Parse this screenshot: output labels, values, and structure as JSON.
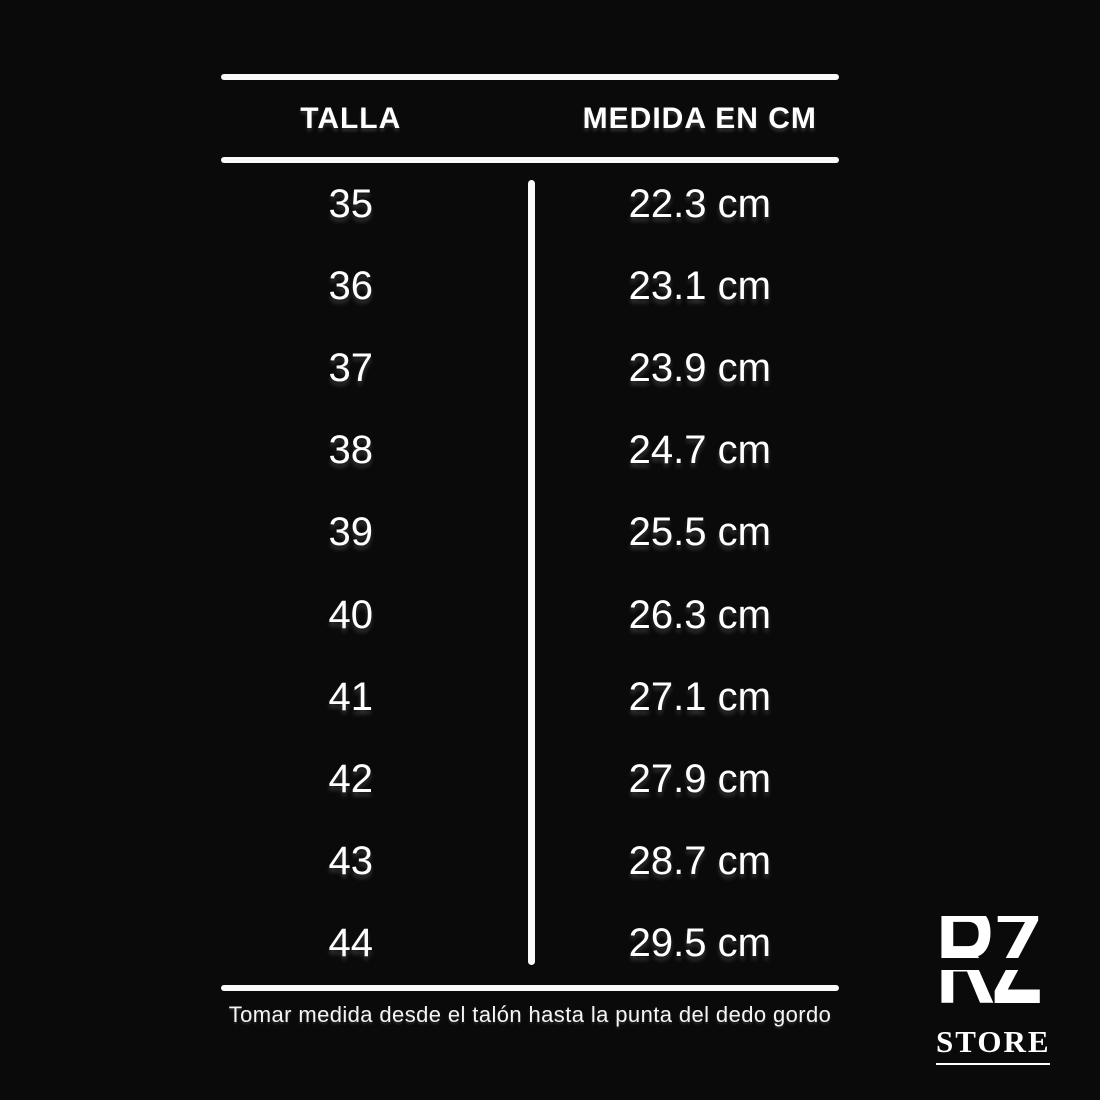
{
  "page": {
    "background_color": "#0a0a0b",
    "text_color": "#ffffff",
    "line_color": "#fafafa"
  },
  "chart_data": {
    "type": "table",
    "columns": [
      "TALLA",
      "MEDIDA EN CM"
    ],
    "rows": [
      [
        "35",
        "22.3 cm"
      ],
      [
        "36",
        "23.1 cm"
      ],
      [
        "37",
        "23.9 cm"
      ],
      [
        "38",
        "24.7 cm"
      ],
      [
        "39",
        "25.5 cm"
      ],
      [
        "40",
        "26.3 cm"
      ],
      [
        "41",
        "27.1 cm"
      ],
      [
        "42",
        "27.9 cm"
      ],
      [
        "43",
        "28.7 cm"
      ],
      [
        "44",
        "29.5 cm"
      ]
    ],
    "sizes": [
      35,
      36,
      37,
      38,
      39,
      40,
      41,
      42,
      43,
      44
    ],
    "measurements_cm": [
      22.3,
      23.1,
      23.9,
      24.7,
      25.5,
      26.3,
      27.1,
      27.9,
      28.7,
      29.5
    ],
    "note": "Tomar medida desde el talón hasta la punta del dedo gordo",
    "layout": {
      "grid": "off",
      "column_divider": "vertical line",
      "row_separators": "none"
    }
  },
  "footer_note": "Tomar medida desde el talón hasta la punta del dedo gordo",
  "logo": {
    "monogram": "RZ",
    "store": "STORE"
  }
}
